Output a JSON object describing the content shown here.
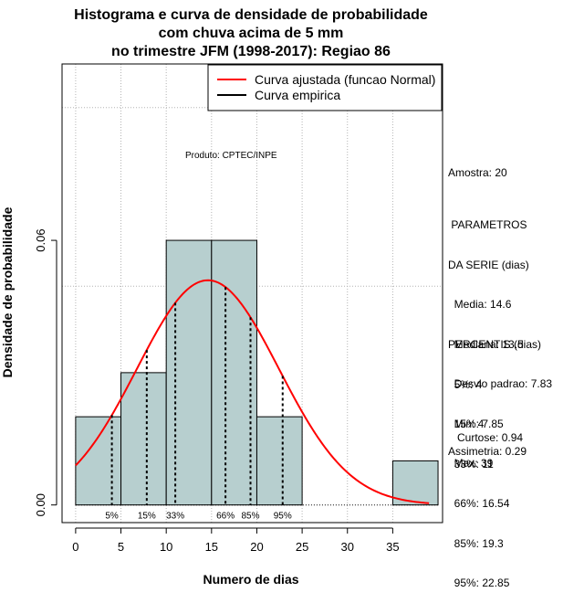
{
  "chart_data": {
    "type": "bar",
    "title": [
      "Histograma e curva de densidade de probabilidade",
      "com chuva acima de 5 mm",
      "no trimestre JFM (1998-2017): Regiao 86"
    ],
    "xlabel": "Numero de dias",
    "ylabel": "Densidade de probabilidade",
    "xlim": [
      -1.5,
      40.5
    ],
    "ylim": [
      -0.004,
      0.1
    ],
    "x_ticks": [
      0,
      5,
      10,
      15,
      20,
      25,
      30,
      35
    ],
    "y_ticks": [
      0.0,
      0.06
    ],
    "y_tick_labels": [
      "0.00",
      "0.06"
    ],
    "grid": true,
    "legend_position": "top-right",
    "bins": [
      {
        "from": 0,
        "to": 5,
        "density": 0.02
      },
      {
        "from": 5,
        "to": 10,
        "density": 0.03
      },
      {
        "from": 10,
        "to": 15,
        "density": 0.06
      },
      {
        "from": 15,
        "to": 20,
        "density": 0.06
      },
      {
        "from": 20,
        "to": 25,
        "density": 0.02
      },
      {
        "from": 25,
        "to": 30,
        "density": 0
      },
      {
        "from": 30,
        "to": 35,
        "density": 0
      },
      {
        "from": 35,
        "to": 40,
        "density": 0.01
      }
    ],
    "normal_fit": {
      "mean": 14.6,
      "sd": 7.83,
      "x_from": 0,
      "x_to": 39
    },
    "percentiles": [
      {
        "label": "5%",
        "x": 4
      },
      {
        "label": "15%",
        "x": 7.85
      },
      {
        "label": "33%",
        "x": 11
      },
      {
        "label": "66%",
        "x": 16.54
      },
      {
        "label": "85%",
        "x": 19.3
      },
      {
        "label": "95%",
        "x": 22.85
      }
    ],
    "series": [
      {
        "name": "Curva ajustada (funcao Normal)",
        "color": "#ff0000"
      },
      {
        "name": "Curva empirica",
        "color": "#000000"
      }
    ],
    "annotation": "Produto: CPTEC/INPE",
    "bar_color": "#b7cfcf"
  },
  "side_panel": {
    "amostra": "Amostra: 20",
    "parametros": [
      " PARAMETROS",
      "DA SERIE (dias)",
      "  Media: 14.6",
      "  Mediana: 13.5",
      "  Desvio padrao: 7.83",
      "  Min: 4",
      "  Max: 39"
    ],
    "percentis": [
      "PERCENTIS (dias)",
      "  5%: 4",
      "  15%: 7.85",
      "  33%: 11",
      "  66%: 16.54",
      "  85%: 19.3",
      "  95%: 22.85"
    ],
    "curtose": "   Curtose: 0.94",
    "assimetria": "Assimetria: 0.29"
  }
}
